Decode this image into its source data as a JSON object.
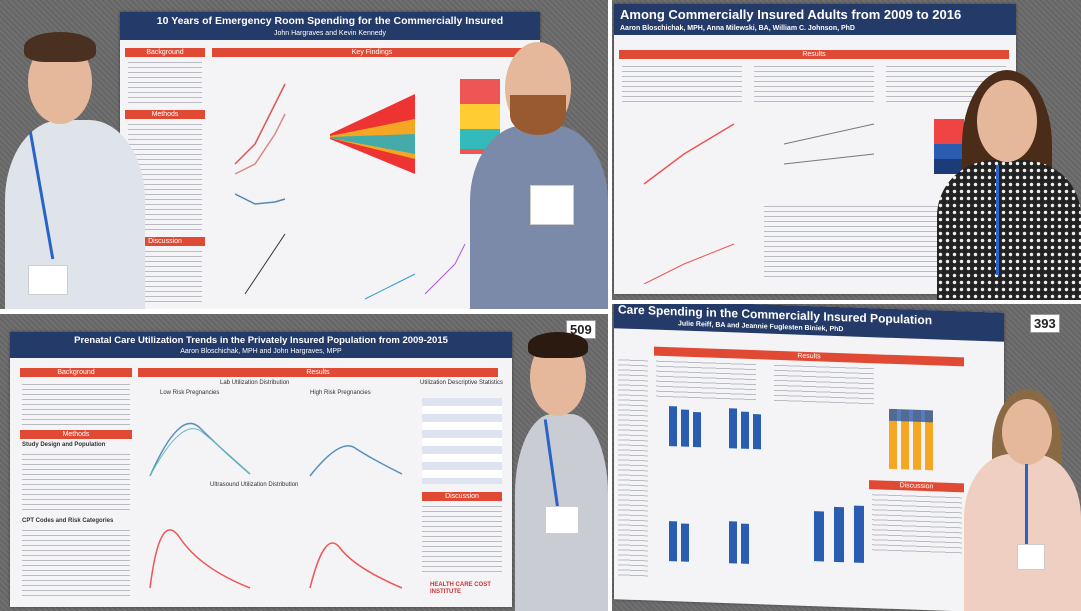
{
  "photos": [
    {
      "title": "10 Years of Emergency Room Spending for the Commercially Insured",
      "authors": "John Hargraves and Kevin Kennedy",
      "sections": [
        "Background",
        "Key Findings",
        "Methods",
        "Discussion"
      ]
    },
    {
      "title": "Among Commercially Insured Adults from 2009 to 2016",
      "authors": "Aaron Bloschichak, MPH, Anna Milewski, BA, William C. Johnson, PhD",
      "sections": [
        "Results"
      ]
    },
    {
      "title": "Prenatal Care Utilization Trends in the Privately Insured Population from 2009-2015",
      "authors": "Aaron Bloschichak, MPH and John Hargraves, MPP",
      "sections": [
        "Background",
        "Results",
        "Methods",
        "Discussion"
      ],
      "subheads": [
        "Study Design and Population",
        "CPT Codes and Risk Categories",
        "Lab Utilization Distribution",
        "Low Risk Pregnancies",
        "High Risk Pregnancies",
        "Ultrasound Utilization Distribution",
        "Utilization Descriptive Statistics"
      ],
      "logo": "HEALTH CARE COST INSTITUTE",
      "board_number": "509"
    },
    {
      "title": "Care Spending in the Commercially Insured Population",
      "authors": "Julie Reiff, BA and Jeannie Fuglesten Biniek, PhD",
      "sections": [
        "Results",
        "Discussion"
      ],
      "board_number": "393"
    }
  ],
  "colors": {
    "banner": "#243a68",
    "section": "#e04a35",
    "wall": "#6b6b6b"
  }
}
